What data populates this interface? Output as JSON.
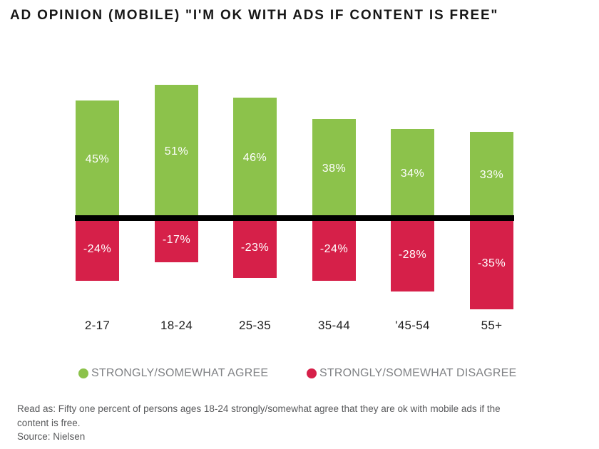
{
  "title": "AD OPINION (MOBILE) \"I'M OK WITH ADS IF CONTENT IS FREE\"",
  "chart_data": {
    "type": "bar",
    "subtype": "diverging-vertical",
    "categories": [
      "2-17",
      "18-24",
      "25-35",
      "35-44",
      "'45-54",
      "55+"
    ],
    "series": [
      {
        "name": "STRONGLY/SOMEWHAT AGREE",
        "color": "#8CC24B",
        "values": [
          45,
          51,
          46,
          38,
          34,
          33
        ],
        "labels": [
          "45%",
          "51%",
          "46%",
          "38%",
          "34%",
          "33%"
        ]
      },
      {
        "name": "STRONGLY/SOMEWHAT DISAGREE",
        "color": "#D62049",
        "values": [
          -24,
          -17,
          -23,
          -24,
          -28,
          -35
        ],
        "labels": [
          "-24%",
          "-17%",
          "-23%",
          "-24%",
          "-28%",
          "-35%"
        ]
      }
    ],
    "baseline": 0,
    "ylim": [
      -40,
      55
    ],
    "grid": false,
    "axis_ticks_visible": false,
    "legend_position": "bottom",
    "bar_label_color": "#FFFFFF",
    "baseline_color": "#000000"
  },
  "footer": {
    "read_as_lines": [
      "Read as: Fifty one percent of persons ages 18-24 strongly/somewhat agree that they are ok with mobile ads if the",
      "content is free."
    ],
    "source": "Source: Nielsen"
  },
  "colors": {
    "title_text": "#161616",
    "legend_text": "#808285",
    "footer_text": "#58595B",
    "category_text": "#232323",
    "background": "#FFFFFF"
  }
}
